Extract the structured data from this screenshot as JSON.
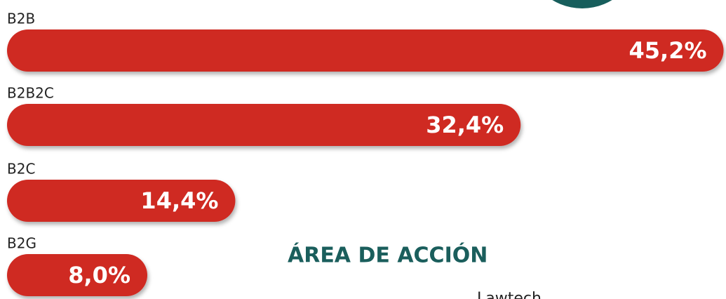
{
  "chart_data": {
    "type": "bar",
    "orientation": "horizontal",
    "categories": [
      "B2B",
      "B2B2C",
      "B2C",
      "B2G"
    ],
    "values": [
      45.2,
      32.4,
      14.4,
      8.0
    ],
    "value_labels": [
      "45,2%",
      "32,4%",
      "14,4%",
      "8,0%"
    ],
    "color": "#cf2a22"
  },
  "section_title": "ÁREA DE ACCIÓN",
  "section_item": "Lawtech"
}
